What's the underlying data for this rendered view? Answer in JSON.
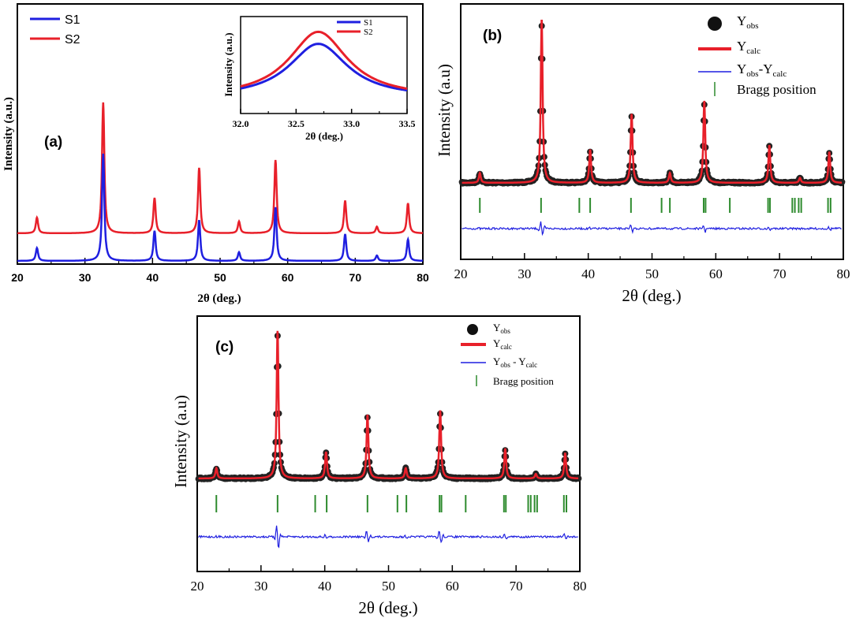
{
  "panels": {
    "a": {
      "label": "(a)",
      "xlabel": "2θ (deg.)",
      "ylabel": "Intensity (a.u.)",
      "xticks": [
        "20",
        "30",
        "40",
        "50",
        "60",
        "70",
        "80"
      ],
      "legend": [
        "S1",
        "S2"
      ],
      "inset": {
        "xlabel": "2θ (deg.)",
        "ylabel": "Intensity (a.u.)",
        "xticks": [
          "32.0",
          "32.5",
          "33.0",
          "33.5"
        ],
        "legend": [
          "S1",
          "S2"
        ]
      }
    },
    "b": {
      "label": "(b)",
      "xlabel": "2θ (deg.)",
      "ylabel": "Intensity (a.u)",
      "xticks": [
        "20",
        "30",
        "40",
        "50",
        "60",
        "70",
        "80"
      ],
      "legend": {
        "obs_main": "Y",
        "obs_sub": "obs",
        "calc_main": "Y",
        "calc_sub": "calc",
        "diff_main1": "Y",
        "diff_sub1": "obs",
        "diff_mid": "-Y",
        "diff_sub2": "calc",
        "bragg": "Bragg position"
      }
    },
    "c": {
      "label": "(c)",
      "xlabel": "2θ (deg.)",
      "ylabel": "Intensity (a.u)",
      "xticks": [
        "20",
        "30",
        "40",
        "50",
        "60",
        "70",
        "80"
      ],
      "legend": {
        "obs_main": "Y",
        "obs_sub": "obs",
        "calc_main": "Y",
        "calc_sub": "calc",
        "diff_main1": "Y",
        "diff_sub1": "obs",
        "diff_mid": " - Y",
        "diff_sub2": "calc",
        "bragg": "Bragg position"
      }
    }
  },
  "colors": {
    "S1": "#1f1fe0",
    "S2": "#e8202a",
    "obs": "#222222",
    "calc": "#e8202a",
    "diff": "#1f1fe0",
    "bragg": "#2e8b2e"
  },
  "chart_data": [
    {
      "type": "line",
      "panel": "a",
      "xlim": [
        20,
        80
      ],
      "series": [
        {
          "name": "S1",
          "peaks": [
            [
              22.9,
              0.12
            ],
            [
              32.7,
              1.0
            ],
            [
              40.3,
              0.28
            ],
            [
              46.9,
              0.38
            ],
            [
              52.8,
              0.08
            ],
            [
              58.2,
              0.5
            ],
            [
              68.5,
              0.25
            ],
            [
              73.2,
              0.05
            ],
            [
              77.8,
              0.2
            ]
          ]
        },
        {
          "name": "S2",
          "peaks": [
            [
              22.9,
              0.12
            ],
            [
              32.7,
              1.0
            ],
            [
              40.3,
              0.27
            ],
            [
              46.9,
              0.5
            ],
            [
              52.8,
              0.09
            ],
            [
              58.2,
              0.56
            ],
            [
              68.5,
              0.25
            ],
            [
              73.2,
              0.05
            ],
            [
              77.8,
              0.23
            ]
          ]
        }
      ]
    },
    {
      "type": "line",
      "panel": "a-inset",
      "xlim": [
        32.0,
        33.5
      ],
      "series": [
        {
          "name": "S1",
          "center": 32.7,
          "peak": 0.72
        },
        {
          "name": "S2",
          "center": 32.7,
          "peak": 0.88
        }
      ]
    },
    {
      "type": "line",
      "panel": "b",
      "xlim": [
        20,
        80
      ],
      "peaks": [
        [
          23.0,
          0.06
        ],
        [
          32.7,
          1.0
        ],
        [
          40.3,
          0.2
        ],
        [
          46.8,
          0.42
        ],
        [
          52.8,
          0.06
        ],
        [
          58.2,
          0.5
        ],
        [
          68.4,
          0.23
        ],
        [
          73.2,
          0.03
        ],
        [
          77.8,
          0.19
        ]
      ],
      "bragg": [
        23.0,
        32.6,
        38.6,
        40.3,
        46.7,
        51.5,
        52.8,
        58.1,
        58.4,
        62.2,
        68.2,
        68.5,
        72.0,
        72.4,
        73.0,
        73.4,
        77.6,
        78.0
      ]
    },
    {
      "type": "line",
      "panel": "c",
      "xlim": [
        20,
        80
      ],
      "peaks": [
        [
          23.0,
          0.07
        ],
        [
          32.6,
          1.0
        ],
        [
          40.2,
          0.18
        ],
        [
          46.7,
          0.43
        ],
        [
          52.7,
          0.07
        ],
        [
          58.1,
          0.46
        ],
        [
          68.3,
          0.2
        ],
        [
          73.1,
          0.03
        ],
        [
          77.7,
          0.17
        ]
      ],
      "bragg": [
        23.0,
        32.6,
        38.5,
        40.3,
        46.7,
        51.4,
        52.8,
        58.0,
        58.3,
        62.1,
        68.1,
        68.4,
        71.9,
        72.3,
        72.9,
        73.3,
        77.5,
        77.9
      ]
    }
  ]
}
